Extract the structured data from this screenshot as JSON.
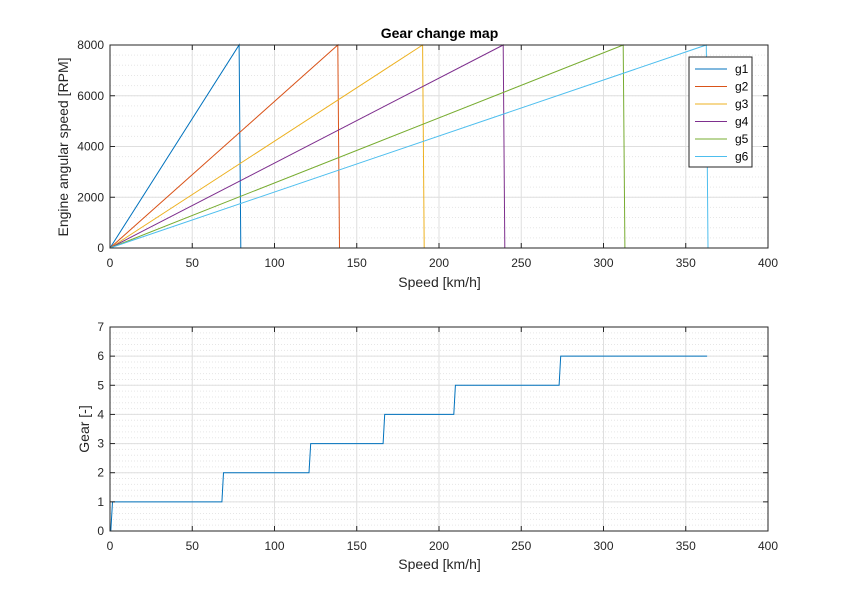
{
  "figure": {
    "background": "#ffffff"
  },
  "chart_data": [
    {
      "type": "line",
      "title": "Gear change map",
      "xlabel": "Speed [km/h]",
      "ylabel": "Engine angular speed [RPM]",
      "xlim": [
        0,
        400
      ],
      "ylim": [
        0,
        8000
      ],
      "xticks": [
        "0",
        "50",
        "100",
        "150",
        "200",
        "250",
        "300",
        "350",
        "400"
      ],
      "yticks": [
        "0",
        "2000",
        "4000",
        "6000",
        "8000"
      ],
      "grid": true,
      "minor_grid_y": true,
      "legend": "top-right",
      "series": [
        {
          "name": "g1",
          "color": "#0072BD",
          "x": [
            0,
            78.5,
            79.5,
            80
          ],
          "y": [
            0,
            8000,
            0,
            0
          ]
        },
        {
          "name": "g2",
          "color": "#D95319",
          "x": [
            0,
            138.5,
            139.5,
            140
          ],
          "y": [
            0,
            8000,
            0,
            0
          ]
        },
        {
          "name": "g3",
          "color": "#EDB120",
          "x": [
            0,
            190,
            191,
            191.5
          ],
          "y": [
            0,
            8000,
            0,
            0
          ]
        },
        {
          "name": "g4",
          "color": "#7E2F8E",
          "x": [
            0,
            239,
            240,
            240.5
          ],
          "y": [
            0,
            8000,
            0,
            0
          ]
        },
        {
          "name": "g5",
          "color": "#77AC30",
          "x": [
            0,
            312,
            313,
            313.5
          ],
          "y": [
            0,
            8000,
            0,
            0
          ]
        },
        {
          "name": "g6",
          "color": "#4DBEEE",
          "x": [
            0,
            362.5,
            363.5,
            364
          ],
          "y": [
            0,
            8000,
            0,
            0
          ]
        }
      ]
    },
    {
      "type": "line",
      "title": "",
      "xlabel": "Speed [km/h]",
      "ylabel": "Gear [-]",
      "xlim": [
        0,
        400
      ],
      "ylim": [
        0,
        7
      ],
      "xticks": [
        "0",
        "50",
        "100",
        "150",
        "200",
        "250",
        "300",
        "350",
        "400"
      ],
      "yticks": [
        "0",
        "1",
        "2",
        "3",
        "4",
        "5",
        "6",
        "7"
      ],
      "grid": true,
      "minor_grid_y": true,
      "series": [
        {
          "color": "#0072BD",
          "x": [
            0,
            0.5,
            1.5,
            68,
            69,
            121,
            122,
            166,
            167,
            209,
            210,
            273,
            274,
            363
          ],
          "y": [
            0,
            0,
            1,
            1,
            2,
            2,
            3,
            3,
            4,
            4,
            5,
            5,
            6,
            6
          ]
        }
      ]
    }
  ]
}
